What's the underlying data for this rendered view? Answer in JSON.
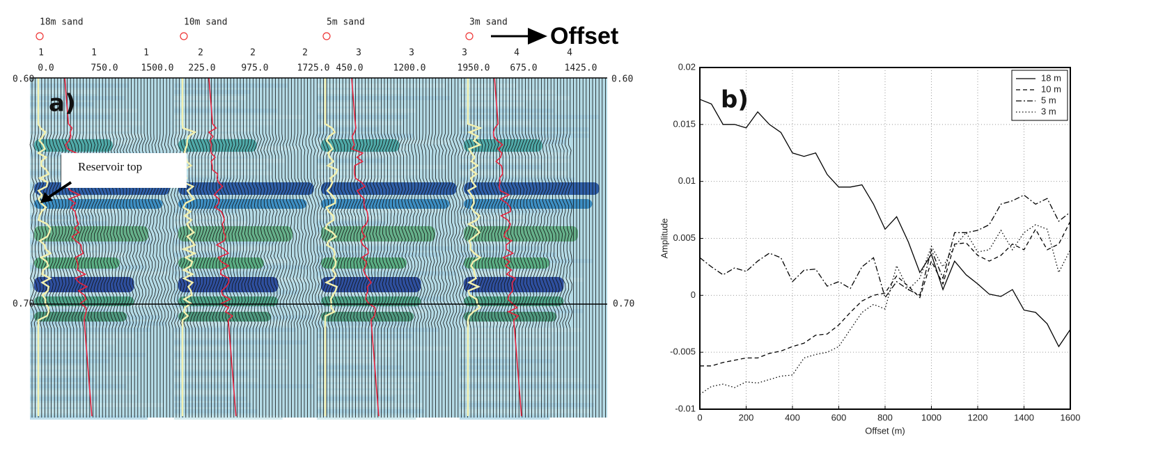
{
  "panel_a": {
    "label": "a)",
    "sand_labels": [
      "18m sand",
      "10m sand",
      "5m sand",
      "3m sand"
    ],
    "offset_label": "Offset",
    "trace_groups": [
      "1",
      "1",
      "1",
      "2",
      "2",
      "2",
      "3",
      "3",
      "3",
      "4",
      "4"
    ],
    "offsets": [
      "0.0",
      "750.0",
      "1500.0",
      "225.0",
      "975.0",
      "1725.0",
      "450.0",
      "1200.0",
      "1950.0",
      "675.0",
      "1425.0"
    ],
    "time_labels": [
      "0.60",
      "0.70"
    ],
    "annotation": "Reservoir top"
  },
  "chart_data": {
    "type": "line",
    "title": "b)",
    "x_label": "Offset (m)",
    "y_label": "Amplitude",
    "x": [
      0,
      50,
      100,
      150,
      200,
      250,
      300,
      350,
      400,
      450,
      500,
      550,
      600,
      650,
      700,
      750,
      800,
      850,
      900,
      950,
      1000,
      1050,
      1100,
      1150,
      1200,
      1250,
      1300,
      1350,
      1400,
      1450,
      1500,
      1550,
      1600
    ],
    "series": [
      {
        "name": "18 m",
        "color": "#000000",
        "dash": "solid",
        "values": [
          0.0172,
          0.0168,
          0.015,
          0.015,
          0.0147,
          0.0161,
          0.015,
          0.0143,
          0.0125,
          0.0122,
          0.0125,
          0.0106,
          0.0095,
          0.0095,
          0.0097,
          0.008,
          0.0058,
          0.0069,
          0.0047,
          0.002,
          0.0036,
          0.0005,
          0.003,
          0.0018,
          0.001,
          0.0001,
          -0.0001,
          0.0005,
          -0.0013,
          -0.0015,
          -0.0025,
          -0.0045,
          -0.003
        ]
      },
      {
        "name": "10 m",
        "color": "#000000",
        "dash": "dashed",
        "values": [
          -0.0062,
          -0.0062,
          -0.0059,
          -0.0057,
          -0.0055,
          -0.0055,
          -0.0051,
          -0.0049,
          -0.0045,
          -0.0042,
          -0.0035,
          -0.0034,
          -0.0026,
          -0.0015,
          -0.0005,
          0.0,
          0.0002,
          0.0017,
          0.0008,
          -0.0002,
          0.003,
          0.001,
          0.0045,
          0.0046,
          0.0035,
          0.003,
          0.0035,
          0.0045,
          0.004,
          0.0058,
          0.004,
          0.0045,
          0.0065
        ]
      },
      {
        "name": "5 m",
        "color": "#000000",
        "dash": "dashdot",
        "values": [
          0.0033,
          0.0025,
          0.0018,
          0.0024,
          0.0021,
          0.003,
          0.0037,
          0.0033,
          0.0012,
          0.0022,
          0.0023,
          0.0008,
          0.0012,
          0.0006,
          0.0025,
          0.0033,
          -0.0002,
          0.0012,
          0.0005,
          0.0,
          0.004,
          0.0015,
          0.0055,
          0.0055,
          0.0057,
          0.0062,
          0.008,
          0.0083,
          0.0088,
          0.008,
          0.0085,
          0.0065,
          0.0073
        ]
      },
      {
        "name": "3 m",
        "color": "#000000",
        "dash": "dotted",
        "values": [
          -0.0087,
          -0.008,
          -0.0078,
          -0.0081,
          -0.0076,
          -0.0077,
          -0.0074,
          -0.0071,
          -0.007,
          -0.0055,
          -0.0052,
          -0.005,
          -0.0045,
          -0.003,
          -0.0015,
          -0.0008,
          -0.0012,
          0.0026,
          0.0005,
          0.0015,
          0.0043,
          0.0025,
          0.0043,
          0.0055,
          0.0038,
          0.004,
          0.0057,
          0.004,
          0.0055,
          0.0062,
          0.0058,
          0.002,
          0.004
        ]
      }
    ],
    "xlim": [
      0,
      1600
    ],
    "xticks": [
      0,
      200,
      400,
      600,
      800,
      1000,
      1200,
      1400,
      1600
    ],
    "ylim": [
      -0.01,
      0.02
    ],
    "yticks": [
      -0.01,
      -0.005,
      0,
      0.005,
      0.01,
      0.015,
      0.02
    ],
    "grid": true,
    "legend": "upper right"
  }
}
